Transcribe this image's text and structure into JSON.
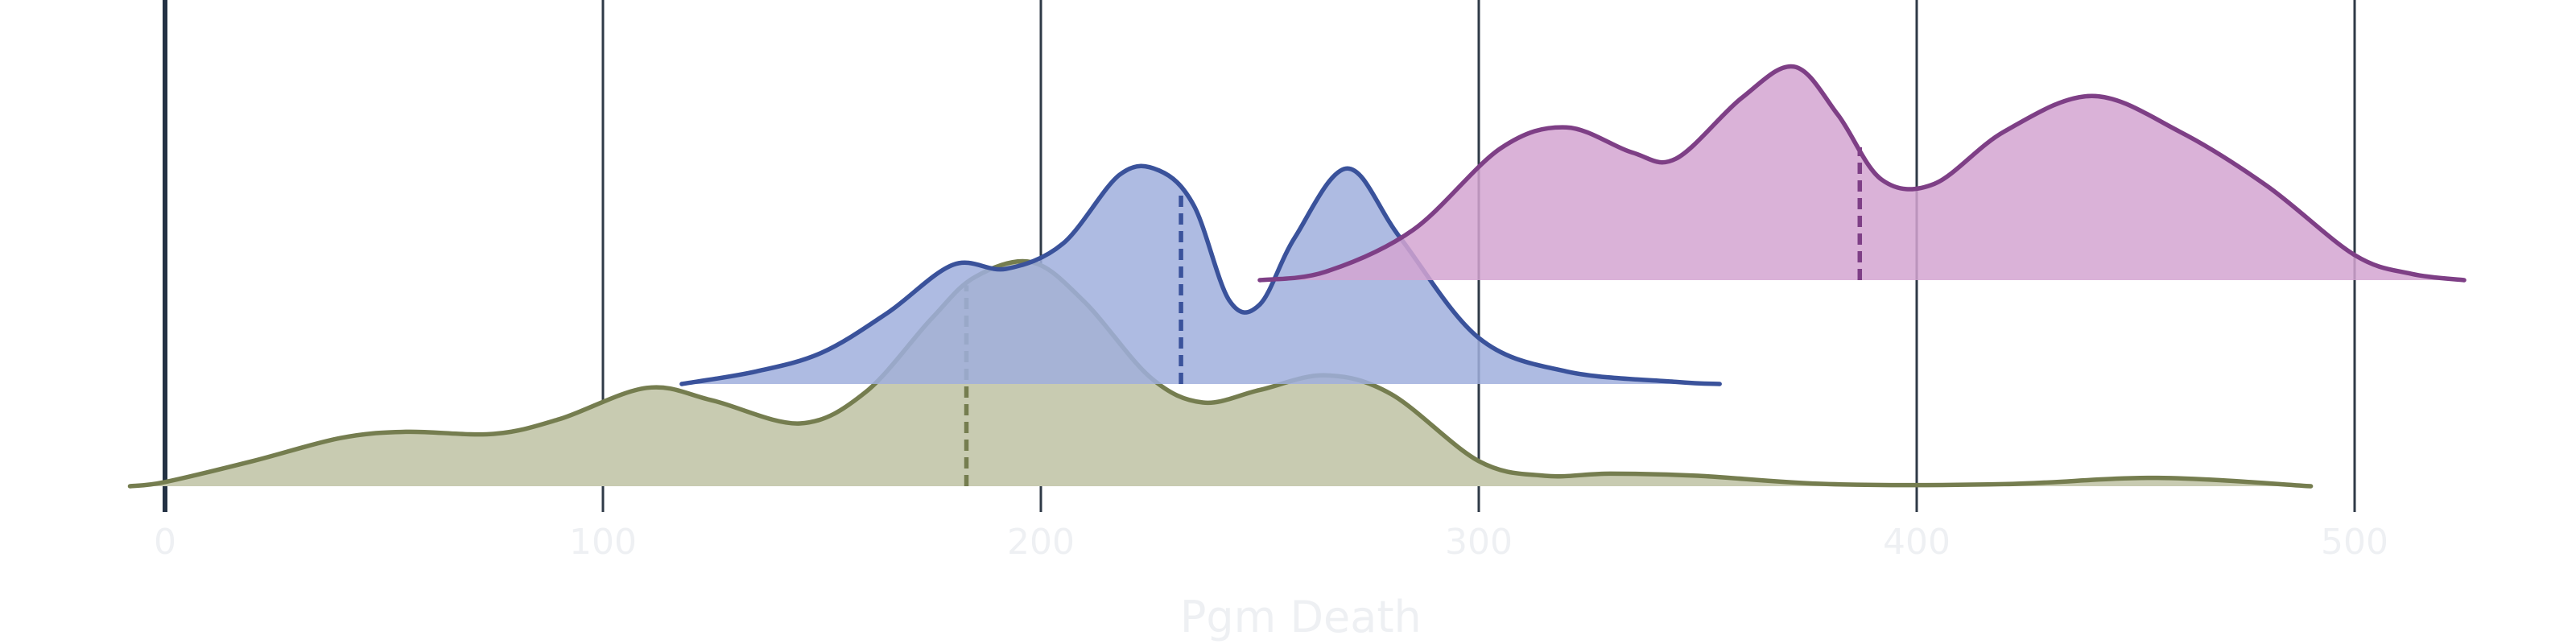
{
  "chart_data": {
    "type": "area",
    "subtype": "ridgeline-density",
    "xlabel": "Pgm Death",
    "ylabel": "",
    "title": "",
    "xlim": [
      -10,
      525
    ],
    "xticks": [
      0,
      100,
      200,
      300,
      400,
      500
    ],
    "grid": {
      "x": true,
      "y": false
    },
    "legend": "none",
    "series": [
      {
        "name": "",
        "row": 0,
        "color": "#757d4f",
        "fill": "#c8cbb1",
        "median": 183,
        "x": [
          -8,
          0,
          20,
          40,
          55,
          75,
          90,
          110,
          125,
          145,
          160,
          175,
          185,
          198,
          210,
          225,
          237,
          250,
          265,
          280,
          300,
          315,
          330,
          350,
          380,
          420,
          455,
          490
        ],
        "y": [
          0.0,
          0.02,
          0.12,
          0.23,
          0.26,
          0.25,
          0.32,
          0.47,
          0.41,
          0.3,
          0.45,
          0.8,
          1.0,
          1.07,
          0.88,
          0.52,
          0.4,
          0.46,
          0.53,
          0.44,
          0.12,
          0.05,
          0.06,
          0.05,
          0.01,
          0.01,
          0.04,
          0.0
        ]
      },
      {
        "name": "",
        "row": 1,
        "color": "#3a529b",
        "fill": "#a0afdd",
        "median": 232,
        "x": [
          118,
          135,
          150,
          165,
          180,
          192,
          205,
          218,
          227,
          235,
          243,
          250,
          258,
          270,
          282,
          300,
          320,
          345,
          355
        ],
        "y": [
          0.0,
          0.06,
          0.15,
          0.34,
          0.57,
          0.55,
          0.67,
          1.0,
          1.02,
          0.85,
          0.4,
          0.38,
          0.7,
          1.03,
          0.7,
          0.22,
          0.06,
          0.01,
          0.0
        ]
      },
      {
        "name": "",
        "row": 2,
        "color": "#7e3f86",
        "fill": "#d4a5d1",
        "median": 387,
        "x": [
          250,
          265,
          285,
          305,
          320,
          335,
          345,
          360,
          372,
          382,
          392,
          404,
          420,
          440,
          460,
          480,
          500,
          513,
          525
        ],
        "y": [
          0.0,
          0.04,
          0.24,
          0.63,
          0.73,
          0.61,
          0.58,
          0.87,
          1.02,
          0.79,
          0.48,
          0.46,
          0.71,
          0.88,
          0.71,
          0.45,
          0.12,
          0.03,
          0.0
        ]
      }
    ]
  }
}
